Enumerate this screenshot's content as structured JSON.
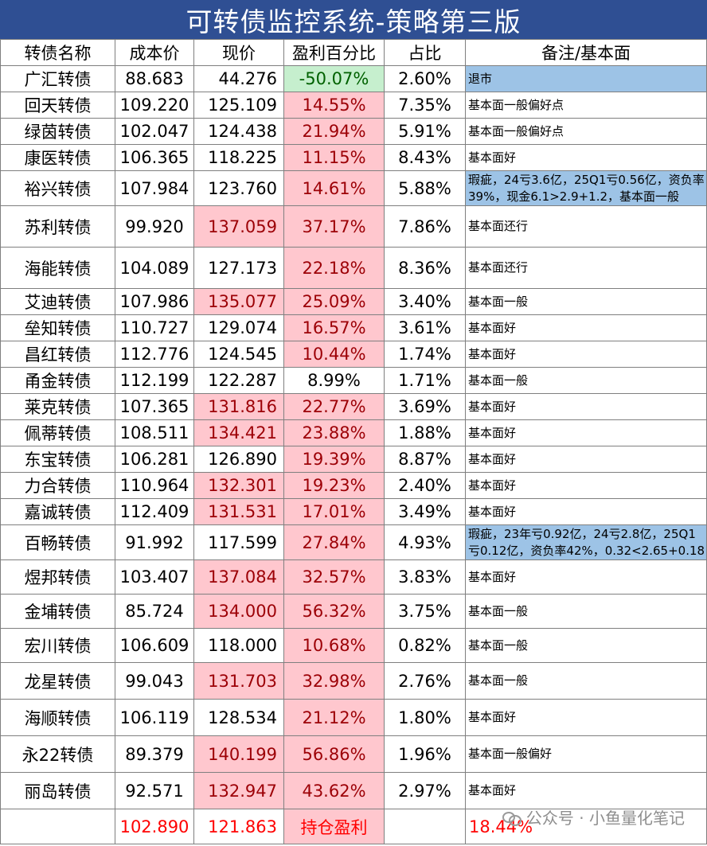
{
  "title": "可转债监控系统-策略第三版",
  "headers": [
    "转债名称",
    "成本价",
    "现价",
    "盈利百分比",
    "占比",
    "备注/基本面"
  ],
  "rows": [
    {
      "name": "广汇转债",
      "cost": "88.683",
      "price": "44.276",
      "pct": "-50.07%",
      "share": "2.60%",
      "note": "退市"
    },
    {
      "name": "回天转债",
      "cost": "109.220",
      "price": "125.109",
      "pct": "14.55%",
      "share": "7.35%",
      "note": "基本面一般偏好点"
    },
    {
      "name": "绿茵转债",
      "cost": "102.047",
      "price": "124.438",
      "pct": "21.94%",
      "share": "5.91%",
      "note": "基本面一般偏好点"
    },
    {
      "name": "康医转债",
      "cost": "106.365",
      "price": "118.225",
      "pct": "11.15%",
      "share": "8.43%",
      "note": "基本面好"
    },
    {
      "name": "裕兴转债",
      "cost": "107.984",
      "price": "123.760",
      "pct": "14.61%",
      "share": "5.88%",
      "note": "瑕疵，24亏3.6亿，25Q1亏0.56亿，资负率39%，现金6.1>2.9+1.2，基本面一般"
    },
    {
      "name": "苏利转债",
      "cost": "99.920",
      "price": "137.059",
      "pct": "37.17%",
      "share": "7.86%",
      "note": "基本面还行"
    },
    {
      "name": "海能转债",
      "cost": "104.089",
      "price": "127.173",
      "pct": "22.18%",
      "share": "8.36%",
      "note": "基本面还行"
    },
    {
      "name": "艾迪转债",
      "cost": "107.986",
      "price": "135.077",
      "pct": "25.09%",
      "share": "3.40%",
      "note": "基本面一般"
    },
    {
      "name": "垒知转债",
      "cost": "110.727",
      "price": "129.074",
      "pct": "16.57%",
      "share": "3.61%",
      "note": "基本面好"
    },
    {
      "name": "昌红转债",
      "cost": "112.776",
      "price": "124.545",
      "pct": "10.44%",
      "share": "1.74%",
      "note": "基本面好"
    },
    {
      "name": "甬金转债",
      "cost": "112.199",
      "price": "122.287",
      "pct": "8.99%",
      "share": "1.71%",
      "note": "基本面一般"
    },
    {
      "name": "莱克转债",
      "cost": "107.365",
      "price": "131.816",
      "pct": "22.77%",
      "share": "3.69%",
      "note": "基本面好"
    },
    {
      "name": "佩蒂转债",
      "cost": "108.511",
      "price": "134.421",
      "pct": "23.88%",
      "share": "1.88%",
      "note": "基本面好"
    },
    {
      "name": "东宝转债",
      "cost": "106.281",
      "price": "126.890",
      "pct": "19.39%",
      "share": "8.87%",
      "note": "基本面好"
    },
    {
      "name": "力合转债",
      "cost": "110.964",
      "price": "132.301",
      "pct": "19.23%",
      "share": "2.40%",
      "note": "基本面好"
    },
    {
      "name": "嘉诚转债",
      "cost": "112.409",
      "price": "131.531",
      "pct": "17.01%",
      "share": "3.49%",
      "note": "基本面好"
    },
    {
      "name": "百畅转债",
      "cost": "91.992",
      "price": "117.599",
      "pct": "27.84%",
      "share": "4.93%",
      "note": "瑕疵，23年亏0.92亿，24亏2.8亿，25Q1亏0.12亿，资负率42%，0.32<2.65+0.18"
    },
    {
      "name": "煜邦转债",
      "cost": "103.407",
      "price": "137.084",
      "pct": "32.57%",
      "share": "3.83%",
      "note": "基本面好"
    },
    {
      "name": "金埔转债",
      "cost": "85.724",
      "price": "134.000",
      "pct": "56.32%",
      "share": "3.75%",
      "note": "基本面一般"
    },
    {
      "name": "宏川转债",
      "cost": "106.609",
      "price": "118.000",
      "pct": "10.68%",
      "share": "0.82%",
      "note": "基本面一般"
    },
    {
      "name": "龙星转债",
      "cost": "99.043",
      "price": "131.703",
      "pct": "32.98%",
      "share": "2.76%",
      "note": "基本面一般"
    },
    {
      "name": "海顺转债",
      "cost": "106.119",
      "price": "128.534",
      "pct": "21.12%",
      "share": "1.80%",
      "note": "基本面好"
    },
    {
      "name": "永22转债",
      "cost": "89.379",
      "price": "140.199",
      "pct": "56.86%",
      "share": "1.96%",
      "note": "基本面一般偏好"
    },
    {
      "name": "丽岛转债",
      "cost": "92.571",
      "price": "132.947",
      "pct": "43.62%",
      "share": "2.97%",
      "note": "基本面好"
    }
  ],
  "highlight": {
    "price_red": [
      5,
      7,
      11,
      12,
      14,
      15,
      17,
      18,
      20,
      22,
      23
    ],
    "pct_red": [
      1,
      2,
      3,
      4,
      5,
      6,
      7,
      8,
      9,
      11,
      12,
      13,
      14,
      15,
      16,
      17,
      18,
      19,
      20,
      21,
      22,
      23
    ],
    "pct_green": [
      0
    ],
    "note_blue": [
      0,
      4,
      16
    ],
    "colors": {
      "red_fill": "#ffc7ce",
      "red_text": "#9c0006",
      "green_fill": "#c6efce",
      "blue_fill": "#9dc3e6",
      "title_bg": "#2f4f93",
      "total_text": "#ff0000"
    }
  },
  "total": {
    "cost": "102.890",
    "price": "121.863",
    "label": "持仓盈利",
    "pct": "18.44%"
  },
  "watermark": "公众号 · 小鱼量化笔记"
}
